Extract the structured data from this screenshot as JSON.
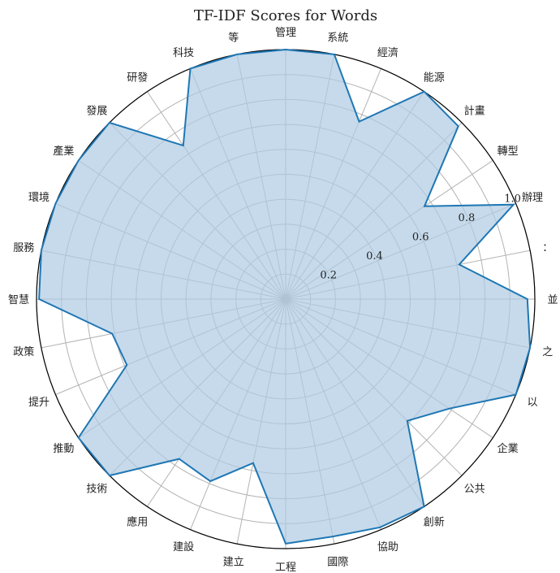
{
  "chart_data": {
    "type": "radar",
    "title": "TF-IDF Scores for Words",
    "categories": [
      "並",
      "：",
      "辦理",
      "轉型",
      "計畫",
      "能源",
      "經濟",
      "系統",
      "管理",
      "等",
      "科技",
      "研發",
      "發展",
      "產業",
      "環境",
      "服務",
      "智慧",
      "政策",
      "提升",
      "推動",
      "技術",
      "應用",
      "建設",
      "建立",
      "工程",
      "國際",
      "協助",
      "創新",
      "公共",
      "企業",
      "以",
      "之"
    ],
    "values": [
      0.97,
      0.71,
      0.99,
      0.67,
      0.98,
      1.0,
      0.77,
      1.0,
      1.0,
      1.0,
      1.0,
      0.74,
      1.0,
      1.0,
      1.0,
      1.0,
      0.99,
      0.71,
      0.69,
      1.0,
      1.0,
      0.77,
      0.79,
      0.67,
      0.98,
      0.97,
      0.99,
      1.0,
      0.69,
      0.79,
      1.0,
      1.0
    ],
    "rlim": [
      0,
      1.0
    ],
    "rticks": [
      "0.2",
      "0.4",
      "0.6",
      "0.8",
      "1.0"
    ],
    "grid": true,
    "line_color": "#1f77b4",
    "fill_color": "#aecae3"
  }
}
